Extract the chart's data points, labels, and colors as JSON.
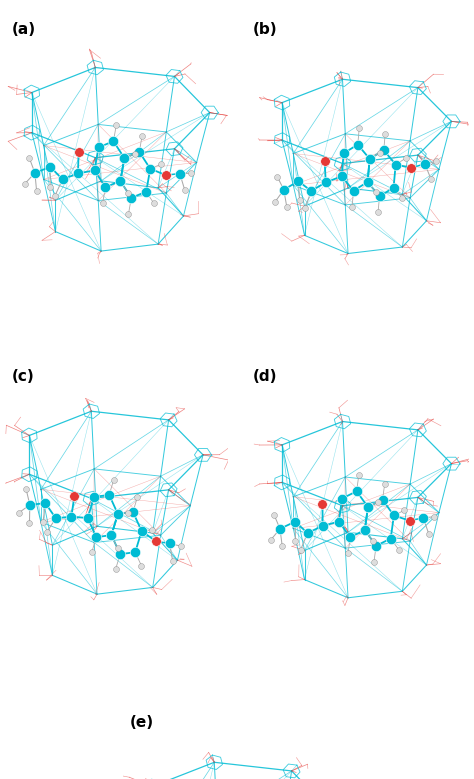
{
  "figure_labels": [
    "(a)",
    "(b)",
    "(c)",
    "(d)",
    "(e)"
  ],
  "label_fontsize": 11,
  "label_fontweight": "bold",
  "label_color": "#000000",
  "background_color": "#ffffff",
  "teal": "#00BCD4",
  "red": "#E53935",
  "gray": "#AAAAAA",
  "white_atom": "#DDDDDD",
  "figsize": [
    4.74,
    7.79
  ],
  "dpi": 100
}
